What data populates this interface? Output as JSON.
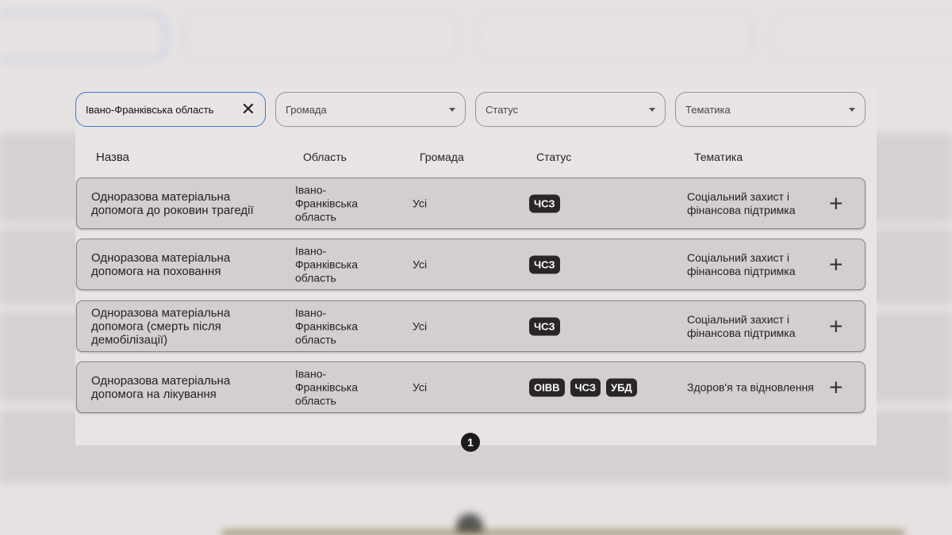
{
  "filters": {
    "region": "Івано-Франківська область",
    "community": "Громада",
    "status": "Статус",
    "topic": "Тематика"
  },
  "headers": {
    "name": "Назва",
    "region": "Область",
    "community": "Громада",
    "status": "Статус",
    "topic": "Тематика"
  },
  "rows": [
    {
      "name": "Одноразова матеріальна допомога до роковин трагедії",
      "region": "Івано-Франківська область",
      "community": "Усі",
      "badges": [
        "ЧСЗ"
      ],
      "topic": "Соціальний захист і фінансова підтримка"
    },
    {
      "name": "Одноразова матеріальна допомога на поховання",
      "region": "Івано-Франківська область",
      "community": "Усі",
      "badges": [
        "ЧСЗ"
      ],
      "topic": "Соціальний захист і фінансова підтримка"
    },
    {
      "name": "Одноразова матеріальна допомога (смерть після демобілізації)",
      "region": "Івано-Франківська область",
      "community": "Усі",
      "badges": [
        "ЧСЗ"
      ],
      "topic": "Соціальний захист і фінансова підтримка"
    },
    {
      "name": "Одноразова матеріальна допомога на лікування",
      "region": "Івано-Франківська область",
      "community": "Усі",
      "badges": [
        "ОІВВ",
        "ЧСЗ",
        "УБД"
      ],
      "topic": "Здоров'я та відновлення"
    }
  ],
  "pagination": {
    "current": "1"
  },
  "colors": {
    "accent": "#3b78d8",
    "badge": "#2a2626",
    "row": "#d4cece"
  }
}
